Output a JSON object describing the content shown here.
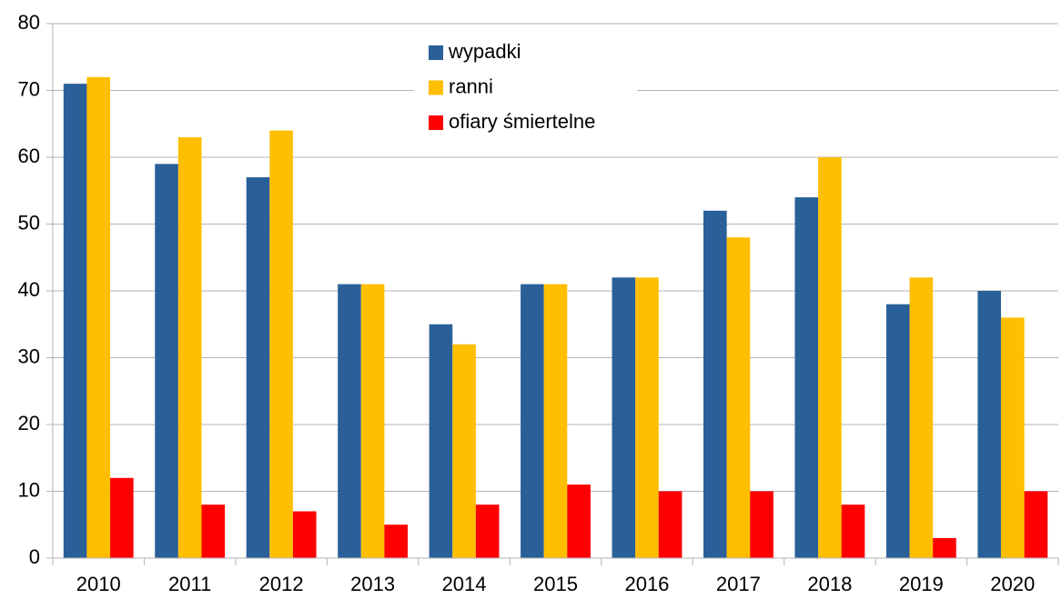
{
  "chart_data": {
    "type": "bar",
    "categories": [
      "2010",
      "2011",
      "2012",
      "2013",
      "2014",
      "2015",
      "2016",
      "2017",
      "2018",
      "2019",
      "2020"
    ],
    "series": [
      {
        "name": "wypadki",
        "color": "#2a6099",
        "values": [
          71,
          59,
          57,
          41,
          35,
          41,
          42,
          52,
          54,
          38,
          40
        ]
      },
      {
        "name": "ranni",
        "color": "#ffbf00",
        "values": [
          72,
          63,
          64,
          41,
          32,
          41,
          42,
          48,
          60,
          42,
          36
        ]
      },
      {
        "name": "ofiary śmiertelne",
        "color": "#ff0000",
        "values": [
          12,
          8,
          7,
          5,
          8,
          11,
          10,
          10,
          8,
          3,
          10
        ]
      }
    ],
    "ylim": [
      0,
      80
    ],
    "yticks": [
      0,
      10,
      20,
      30,
      40,
      50,
      60,
      70,
      80
    ],
    "grid": true,
    "legend": "top-center"
  }
}
